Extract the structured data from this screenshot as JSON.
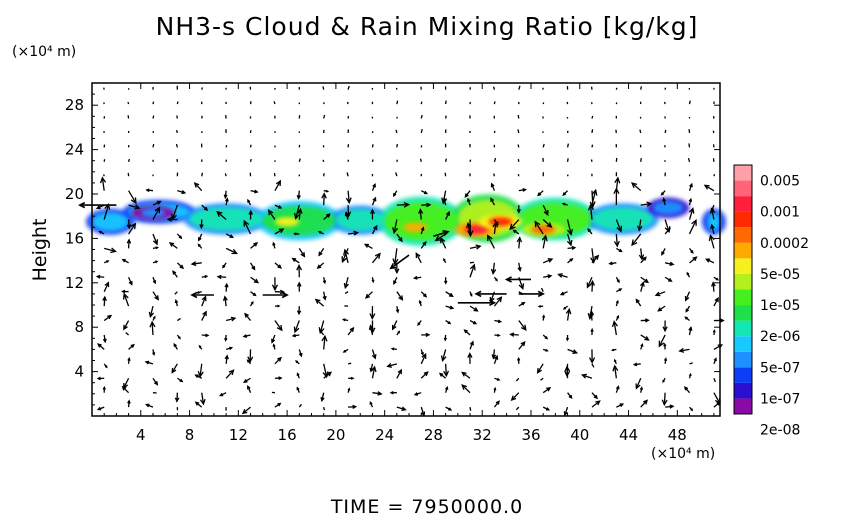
{
  "title": "NH3-s Cloud & Rain Mixing Ratio [kg/kg]",
  "y_unit": "(×10⁴ m)",
  "x_unit": "(×10⁴ m)",
  "ylabel": "Height",
  "time_label": "TIME  =  7950000.0",
  "chart_data": {
    "type": "heatmap",
    "title": "NH3-s Cloud & Rain Mixing Ratio [kg/kg]",
    "xlabel": "",
    "ylabel": "Height",
    "x_unit": "×10⁴ m",
    "y_unit": "×10⁴ m",
    "xlim": [
      0,
      51.5
    ],
    "ylim": [
      0,
      30
    ],
    "x_ticks": [
      4,
      8,
      12,
      16,
      20,
      24,
      28,
      32,
      36,
      40,
      44,
      48
    ],
    "y_ticks": [
      4,
      8,
      12,
      16,
      20,
      24,
      28
    ],
    "colorbar": {
      "scale": "log",
      "labels": [
        "0.005",
        "0.001",
        "0.0002",
        "5e-05",
        "1e-05",
        "2e-06",
        "5e-07",
        "1e-07",
        "2e-08"
      ],
      "colors": [
        "#8b0aa5",
        "#2a0fd0",
        "#0d3df5",
        "#1e90ff",
        "#19c8ff",
        "#14e6b4",
        "#1ee04b",
        "#46f01e",
        "#b4f01e",
        "#f5f01e",
        "#ffaa00",
        "#ff6a00",
        "#ff2a00",
        "#ff1e3c",
        "#ff6478",
        "#ffa0a8"
      ]
    },
    "field": {
      "band": [
        {
          "x": [
            0,
            3
          ],
          "y": [
            16.5,
            18.5
          ],
          "level": 4
        },
        {
          "x": [
            3,
            8
          ],
          "y": [
            17.5,
            19.3
          ],
          "level": 4
        },
        {
          "x": [
            8,
            14
          ],
          "y": [
            16.5,
            19.0
          ],
          "level": 5
        },
        {
          "x": [
            14,
            20
          ],
          "y": [
            16.0,
            19.2
          ],
          "level": 6
        },
        {
          "x": [
            20,
            24
          ],
          "y": [
            16.5,
            18.8
          ],
          "level": 5
        },
        {
          "x": [
            24,
            30
          ],
          "y": [
            15.5,
            19.6
          ],
          "level": 7
        },
        {
          "x": [
            30,
            35
          ],
          "y": [
            15.8,
            19.8
          ],
          "level": 8
        },
        {
          "x": [
            35,
            41
          ],
          "y": [
            16.0,
            19.5
          ],
          "level": 7
        },
        {
          "x": [
            41,
            46
          ],
          "y": [
            16.5,
            19.0
          ],
          "level": 5
        },
        {
          "x": [
            46,
            48.5
          ],
          "y": [
            18.0,
            19.5
          ],
          "level": 3
        },
        {
          "x": [
            50.5,
            51.5
          ],
          "y": [
            16.5,
            18.5
          ],
          "level": 4
        }
      ],
      "maxima": [
        {
          "x": 16,
          "y": 17.5,
          "level": 9
        },
        {
          "x": 26.5,
          "y": 17.0,
          "level": 10
        },
        {
          "x": 31.5,
          "y": 16.8,
          "level": 13
        },
        {
          "x": 33.5,
          "y": 17.5,
          "level": 12
        },
        {
          "x": 37,
          "y": 16.8,
          "level": 11
        },
        {
          "x": 5,
          "y": 18.3,
          "level": 3
        }
      ]
    },
    "wind_vectors": {
      "x_spacing": 2,
      "y_spacing": 1.3,
      "strong_arrows": [
        {
          "x": 2,
          "y": 19.0,
          "dx": -3.0,
          "dy": 0.0
        },
        {
          "x": 26,
          "y": 14.5,
          "dx": -1.5,
          "dy": -1.2
        },
        {
          "x": 28,
          "y": 16.2,
          "dx": 1.2,
          "dy": 0.4
        },
        {
          "x": 30,
          "y": 10.2,
          "dx": 3.0,
          "dy": 0.0
        },
        {
          "x": 34,
          "y": 11.0,
          "dx": -2.5,
          "dy": 0.0
        },
        {
          "x": 35,
          "y": 11.0,
          "dx": 2.0,
          "dy": 0.0
        },
        {
          "x": 36,
          "y": 12.3,
          "dx": -2.0,
          "dy": 0.0
        },
        {
          "x": 14,
          "y": 10.9,
          "dx": 2.0,
          "dy": 0.0
        },
        {
          "x": 10,
          "y": 10.9,
          "dx": -1.8,
          "dy": 0.0
        }
      ]
    },
    "time": "7950000.0"
  }
}
